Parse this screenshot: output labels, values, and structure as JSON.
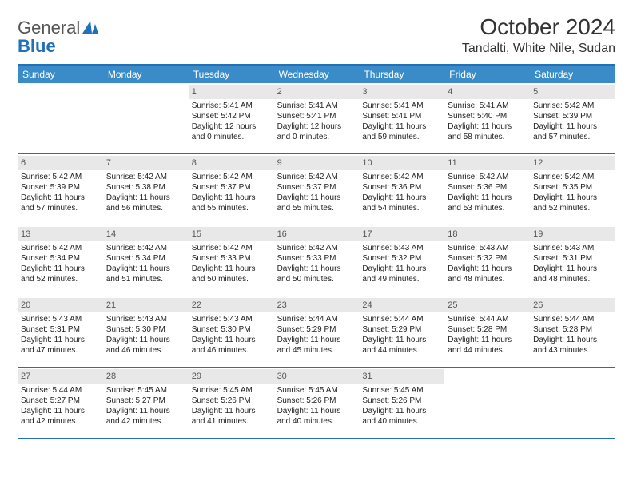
{
  "logo": {
    "text_gray": "General",
    "text_blue": "Blue"
  },
  "title": "October 2024",
  "location": "Tandalti, White Nile, Sudan",
  "colors": {
    "header_bg": "#3a8cc9",
    "border": "#2271b8",
    "daynum_bg": "#e8e8e8",
    "text": "#333333"
  },
  "weekdays": [
    "Sunday",
    "Monday",
    "Tuesday",
    "Wednesday",
    "Thursday",
    "Friday",
    "Saturday"
  ],
  "weeks": [
    [
      {
        "n": "",
        "empty": true
      },
      {
        "n": "",
        "empty": true
      },
      {
        "n": "1",
        "sr": "Sunrise: 5:41 AM",
        "ss": "Sunset: 5:42 PM",
        "dl": "Daylight: 12 hours and 0 minutes."
      },
      {
        "n": "2",
        "sr": "Sunrise: 5:41 AM",
        "ss": "Sunset: 5:41 PM",
        "dl": "Daylight: 12 hours and 0 minutes."
      },
      {
        "n": "3",
        "sr": "Sunrise: 5:41 AM",
        "ss": "Sunset: 5:41 PM",
        "dl": "Daylight: 11 hours and 59 minutes."
      },
      {
        "n": "4",
        "sr": "Sunrise: 5:41 AM",
        "ss": "Sunset: 5:40 PM",
        "dl": "Daylight: 11 hours and 58 minutes."
      },
      {
        "n": "5",
        "sr": "Sunrise: 5:42 AM",
        "ss": "Sunset: 5:39 PM",
        "dl": "Daylight: 11 hours and 57 minutes."
      }
    ],
    [
      {
        "n": "6",
        "sr": "Sunrise: 5:42 AM",
        "ss": "Sunset: 5:39 PM",
        "dl": "Daylight: 11 hours and 57 minutes."
      },
      {
        "n": "7",
        "sr": "Sunrise: 5:42 AM",
        "ss": "Sunset: 5:38 PM",
        "dl": "Daylight: 11 hours and 56 minutes."
      },
      {
        "n": "8",
        "sr": "Sunrise: 5:42 AM",
        "ss": "Sunset: 5:37 PM",
        "dl": "Daylight: 11 hours and 55 minutes."
      },
      {
        "n": "9",
        "sr": "Sunrise: 5:42 AM",
        "ss": "Sunset: 5:37 PM",
        "dl": "Daylight: 11 hours and 55 minutes."
      },
      {
        "n": "10",
        "sr": "Sunrise: 5:42 AM",
        "ss": "Sunset: 5:36 PM",
        "dl": "Daylight: 11 hours and 54 minutes."
      },
      {
        "n": "11",
        "sr": "Sunrise: 5:42 AM",
        "ss": "Sunset: 5:36 PM",
        "dl": "Daylight: 11 hours and 53 minutes."
      },
      {
        "n": "12",
        "sr": "Sunrise: 5:42 AM",
        "ss": "Sunset: 5:35 PM",
        "dl": "Daylight: 11 hours and 52 minutes."
      }
    ],
    [
      {
        "n": "13",
        "sr": "Sunrise: 5:42 AM",
        "ss": "Sunset: 5:34 PM",
        "dl": "Daylight: 11 hours and 52 minutes."
      },
      {
        "n": "14",
        "sr": "Sunrise: 5:42 AM",
        "ss": "Sunset: 5:34 PM",
        "dl": "Daylight: 11 hours and 51 minutes."
      },
      {
        "n": "15",
        "sr": "Sunrise: 5:42 AM",
        "ss": "Sunset: 5:33 PM",
        "dl": "Daylight: 11 hours and 50 minutes."
      },
      {
        "n": "16",
        "sr": "Sunrise: 5:42 AM",
        "ss": "Sunset: 5:33 PM",
        "dl": "Daylight: 11 hours and 50 minutes."
      },
      {
        "n": "17",
        "sr": "Sunrise: 5:43 AM",
        "ss": "Sunset: 5:32 PM",
        "dl": "Daylight: 11 hours and 49 minutes."
      },
      {
        "n": "18",
        "sr": "Sunrise: 5:43 AM",
        "ss": "Sunset: 5:32 PM",
        "dl": "Daylight: 11 hours and 48 minutes."
      },
      {
        "n": "19",
        "sr": "Sunrise: 5:43 AM",
        "ss": "Sunset: 5:31 PM",
        "dl": "Daylight: 11 hours and 48 minutes."
      }
    ],
    [
      {
        "n": "20",
        "sr": "Sunrise: 5:43 AM",
        "ss": "Sunset: 5:31 PM",
        "dl": "Daylight: 11 hours and 47 minutes."
      },
      {
        "n": "21",
        "sr": "Sunrise: 5:43 AM",
        "ss": "Sunset: 5:30 PM",
        "dl": "Daylight: 11 hours and 46 minutes."
      },
      {
        "n": "22",
        "sr": "Sunrise: 5:43 AM",
        "ss": "Sunset: 5:30 PM",
        "dl": "Daylight: 11 hours and 46 minutes."
      },
      {
        "n": "23",
        "sr": "Sunrise: 5:44 AM",
        "ss": "Sunset: 5:29 PM",
        "dl": "Daylight: 11 hours and 45 minutes."
      },
      {
        "n": "24",
        "sr": "Sunrise: 5:44 AM",
        "ss": "Sunset: 5:29 PM",
        "dl": "Daylight: 11 hours and 44 minutes."
      },
      {
        "n": "25",
        "sr": "Sunrise: 5:44 AM",
        "ss": "Sunset: 5:28 PM",
        "dl": "Daylight: 11 hours and 44 minutes."
      },
      {
        "n": "26",
        "sr": "Sunrise: 5:44 AM",
        "ss": "Sunset: 5:28 PM",
        "dl": "Daylight: 11 hours and 43 minutes."
      }
    ],
    [
      {
        "n": "27",
        "sr": "Sunrise: 5:44 AM",
        "ss": "Sunset: 5:27 PM",
        "dl": "Daylight: 11 hours and 42 minutes."
      },
      {
        "n": "28",
        "sr": "Sunrise: 5:45 AM",
        "ss": "Sunset: 5:27 PM",
        "dl": "Daylight: 11 hours and 42 minutes."
      },
      {
        "n": "29",
        "sr": "Sunrise: 5:45 AM",
        "ss": "Sunset: 5:26 PM",
        "dl": "Daylight: 11 hours and 41 minutes."
      },
      {
        "n": "30",
        "sr": "Sunrise: 5:45 AM",
        "ss": "Sunset: 5:26 PM",
        "dl": "Daylight: 11 hours and 40 minutes."
      },
      {
        "n": "31",
        "sr": "Sunrise: 5:45 AM",
        "ss": "Sunset: 5:26 PM",
        "dl": "Daylight: 11 hours and 40 minutes."
      },
      {
        "n": "",
        "empty": true
      },
      {
        "n": "",
        "empty": true
      }
    ]
  ]
}
